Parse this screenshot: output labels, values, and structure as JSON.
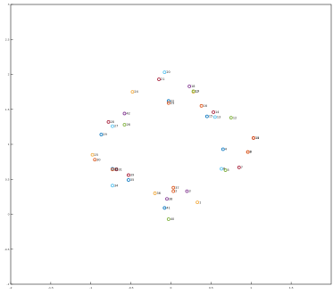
{
  "chart_data": {
    "type": "scatter",
    "title": "",
    "xlabel": "",
    "ylabel": "",
    "xlim": [
      -2,
      2
    ],
    "ylim": [
      -1,
      3
    ],
    "xticks": [
      "-2",
      "-1.5",
      "-1",
      "-0.5",
      "0",
      "0.5",
      "1",
      "1.5"
    ],
    "yticks": [
      "-1",
      "-0.5",
      "0",
      "0.5",
      "1",
      "1.5",
      "2",
      "2.5",
      "3"
    ],
    "grid": false,
    "legend": "none",
    "points": [
      {
        "label": "1",
        "x": 0.33,
        "y": 0.17,
        "color": "#f2a93b"
      },
      {
        "label": "2",
        "x": 0.03,
        "y": 0.33,
        "color": "#d95319"
      },
      {
        "label": "3",
        "x": 0.2,
        "y": 0.33,
        "color": "#7e2f8e"
      },
      {
        "label": "4",
        "x": 0.65,
        "y": 0.93,
        "color": "#0072bd"
      },
      {
        "label": "5",
        "x": 0.68,
        "y": 0.63,
        "color": "#77ac30"
      },
      {
        "label": "6",
        "x": 0.63,
        "y": 0.65,
        "color": "#4dbeee"
      },
      {
        "label": "7",
        "x": 0.85,
        "y": 0.67,
        "color": "#a2142f"
      },
      {
        "label": "8",
        "x": 0.96,
        "y": 0.89,
        "color": "#d95319"
      },
      {
        "label": "9",
        "x": 0.96,
        "y": 0.89,
        "color": "#d95319"
      },
      {
        "label": "10",
        "x": 1.03,
        "y": 1.09,
        "color": "#a2142f"
      },
      {
        "label": "11",
        "x": 1.03,
        "y": 1.09,
        "color": "#d95319"
      },
      {
        "label": "12",
        "x": 0.75,
        "y": 1.38,
        "color": "#77ac30"
      },
      {
        "label": "13",
        "x": 0.55,
        "y": 1.39,
        "color": "#4dbeee"
      },
      {
        "label": "14",
        "x": 0.53,
        "y": 1.46,
        "color": "#a2142f"
      },
      {
        "label": "15",
        "x": 0.45,
        "y": 1.4,
        "color": "#0072bd"
      },
      {
        "label": "16",
        "x": 0.38,
        "y": 1.55,
        "color": "#d95319"
      },
      {
        "label": "17",
        "x": 0.28,
        "y": 1.75,
        "color": "#f2a93b"
      },
      {
        "label": "18",
        "x": 0.23,
        "y": 1.83,
        "color": "#7e2f8e"
      },
      {
        "label": "19",
        "x": 0.28,
        "y": 1.76,
        "color": "#77ac30"
      },
      {
        "label": "20",
        "x": -0.08,
        "y": 2.03,
        "color": "#4dbeee"
      },
      {
        "label": "21",
        "x": -0.15,
        "y": 1.93,
        "color": "#a2142f"
      },
      {
        "label": "22",
        "x": -0.03,
        "y": 1.62,
        "color": "#0072bd"
      },
      {
        "label": "23",
        "x": -0.03,
        "y": 1.59,
        "color": "#d95319"
      },
      {
        "label": "24",
        "x": -0.48,
        "y": 1.75,
        "color": "#f2a93b"
      },
      {
        "label": "25",
        "x": -0.98,
        "y": 0.85,
        "color": "#f2a93b"
      },
      {
        "label": "26",
        "x": -0.58,
        "y": 1.28,
        "color": "#77ac30"
      },
      {
        "label": "27",
        "x": -0.73,
        "y": 1.26,
        "color": "#4dbeee"
      },
      {
        "label": "28",
        "x": -0.78,
        "y": 1.32,
        "color": "#a2142f"
      },
      {
        "label": "29",
        "x": -0.87,
        "y": 1.14,
        "color": "#0072bd"
      },
      {
        "label": "30",
        "x": -0.95,
        "y": 0.78,
        "color": "#d95319"
      },
      {
        "label": "31",
        "x": -0.68,
        "y": 0.64,
        "color": "#a2142f"
      },
      {
        "label": "32",
        "x": -0.73,
        "y": 0.65,
        "color": "#0072bd"
      },
      {
        "label": "33",
        "x": -0.73,
        "y": 0.64,
        "color": "#d95319"
      },
      {
        "label": "34",
        "x": -0.73,
        "y": 0.41,
        "color": "#4dbeee"
      },
      {
        "label": "35",
        "x": -0.53,
        "y": 0.49,
        "color": "#0072bd"
      },
      {
        "label": "36",
        "x": -0.2,
        "y": 0.3,
        "color": "#f2a93b"
      },
      {
        "label": "37",
        "x": 0.03,
        "y": 0.38,
        "color": "#d95319"
      },
      {
        "label": "38",
        "x": -0.05,
        "y": 0.22,
        "color": "#7e2f8e"
      },
      {
        "label": "39",
        "x": -0.53,
        "y": 0.56,
        "color": "#a2142f"
      },
      {
        "label": "40",
        "x": -0.03,
        "y": -0.07,
        "color": "#77ac30"
      },
      {
        "label": "41",
        "x": -0.08,
        "y": 0.09,
        "color": "#0072bd"
      },
      {
        "label": "42",
        "x": -0.58,
        "y": 1.44,
        "color": "#7e2f8e"
      }
    ]
  }
}
